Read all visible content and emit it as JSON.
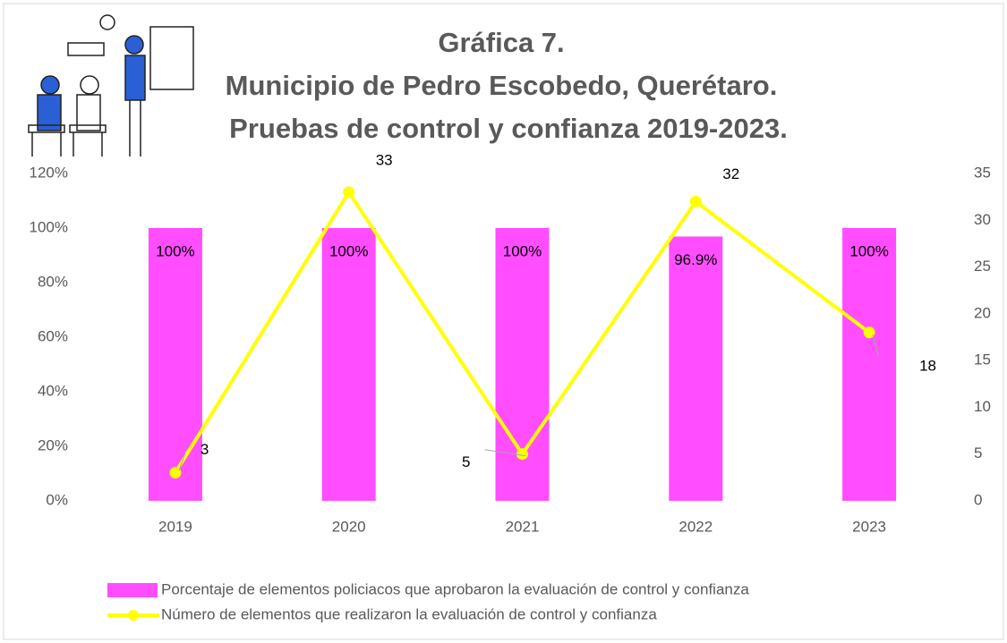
{
  "chart_data": {
    "type": "bar_line",
    "title": [
      "Gráfica 7.",
      "Municipio de Pedro Escobedo, Querétaro.",
      "Pruebas de control y confianza 2019-2023."
    ],
    "categories": [
      "2019",
      "2020",
      "2021",
      "2022",
      "2023"
    ],
    "series": [
      {
        "name": "Porcentaje de elementos policiacos que aprobaron la evaluación de control y confianza",
        "type": "bar",
        "color": "#ff4dff",
        "values": [
          100,
          100,
          100,
          96.9,
          100
        ],
        "value_labels": [
          "100%",
          "100%",
          "100%",
          "96.9%",
          "100%"
        ]
      },
      {
        "name": "Número de elementos que realizaron la evaluación de control y confianza",
        "type": "line",
        "axis": "y2",
        "color": "#ffff00",
        "values": [
          3,
          33,
          5,
          32,
          18
        ]
      }
    ],
    "ylim": [
      0,
      120
    ],
    "yticks": [
      {
        "value": 0,
        "label": "0%"
      },
      {
        "value": 20,
        "label": "20%"
      },
      {
        "value": 40,
        "label": "40%"
      },
      {
        "value": 60,
        "label": "60%"
      },
      {
        "value": 80,
        "label": "80%"
      },
      {
        "value": 100,
        "label": "100%"
      },
      {
        "value": 120,
        "label": "120%"
      }
    ],
    "y2lim": [
      0,
      35
    ],
    "y2ticks": [
      0,
      5,
      10,
      15,
      20,
      25,
      30,
      35
    ],
    "grid": false,
    "legend": "bottom"
  }
}
